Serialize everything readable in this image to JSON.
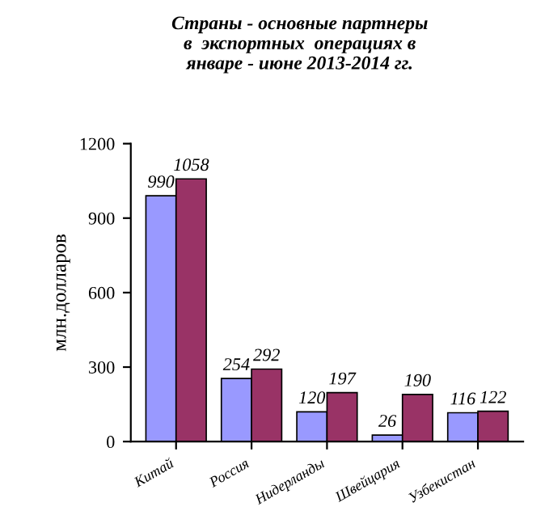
{
  "chart_data": {
    "type": "bar",
    "title": "Страны - основные партнеры\nв  экспортных  операциях в\nянваре - июне 2013-2014 гг.",
    "ylabel": "млн.долларов",
    "categories": [
      "Китай",
      "Россия",
      "Нидерланды",
      "Швейцария",
      "Узбекистан"
    ],
    "series": [
      {
        "color": "#9999ff",
        "values": [
          990,
          254,
          120,
          26,
          116
        ]
      },
      {
        "color": "#993366",
        "values": [
          1058,
          292,
          197,
          190,
          122
        ]
      }
    ],
    "ylim": [
      0,
      1200
    ],
    "yticks": [
      0,
      300,
      600,
      900,
      1200
    ],
    "data_labels": true,
    "grid": false,
    "legend": false
  }
}
